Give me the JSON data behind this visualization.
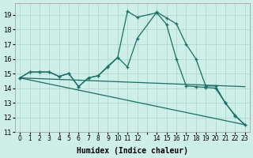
{
  "xlabel": "Humidex (Indice chaleur)",
  "bg_color": "#ceeee8",
  "line_color": "#1a6e63",
  "grid_color": "#aad4cc",
  "xlim": [
    -0.5,
    23.5
  ],
  "ylim": [
    11,
    19.8
  ],
  "yticks": [
    11,
    12,
    13,
    14,
    15,
    16,
    17,
    18,
    19
  ],
  "xticks": [
    0,
    1,
    2,
    3,
    4,
    5,
    6,
    7,
    8,
    9,
    10,
    11,
    12,
    13,
    14,
    15,
    16,
    17,
    18,
    19,
    20,
    21,
    22,
    23
  ],
  "xtick_labels": [
    "0",
    "1",
    "2",
    "3",
    "4",
    "5",
    "6",
    "7",
    "8",
    "9",
    "10",
    "11",
    "12",
    "",
    "14",
    "15",
    "16",
    "17",
    "18",
    "19",
    "20",
    "21",
    "22",
    "23"
  ],
  "curve1_x": [
    0,
    1,
    2,
    3,
    4,
    5,
    6,
    7,
    8,
    9,
    10,
    11,
    12,
    14,
    15,
    16,
    17,
    18,
    19,
    20,
    21,
    22,
    23
  ],
  "curve1_y": [
    14.7,
    15.1,
    15.1,
    15.1,
    14.8,
    15.0,
    14.1,
    14.7,
    14.85,
    15.5,
    16.1,
    15.45,
    17.4,
    19.2,
    18.8,
    18.4,
    17.0,
    16.0,
    14.15,
    14.15,
    13.0,
    12.15,
    11.5
  ],
  "curve2_x": [
    0,
    1,
    2,
    3,
    4,
    5,
    6,
    7,
    8,
    9,
    10,
    11,
    12,
    14,
    15,
    16,
    17,
    18,
    19,
    20,
    21,
    22,
    23
  ],
  "curve2_y": [
    14.7,
    15.1,
    15.1,
    15.1,
    14.8,
    15.0,
    14.1,
    14.7,
    14.85,
    15.45,
    16.1,
    19.25,
    18.85,
    19.15,
    18.35,
    16.0,
    14.15,
    14.1,
    14.05,
    14.0,
    13.0,
    12.1,
    11.5
  ],
  "line3_x": [
    0,
    23
  ],
  "line3_y": [
    14.7,
    14.1
  ],
  "line4_x": [
    0,
    23
  ],
  "line4_y": [
    14.7,
    11.5
  ]
}
